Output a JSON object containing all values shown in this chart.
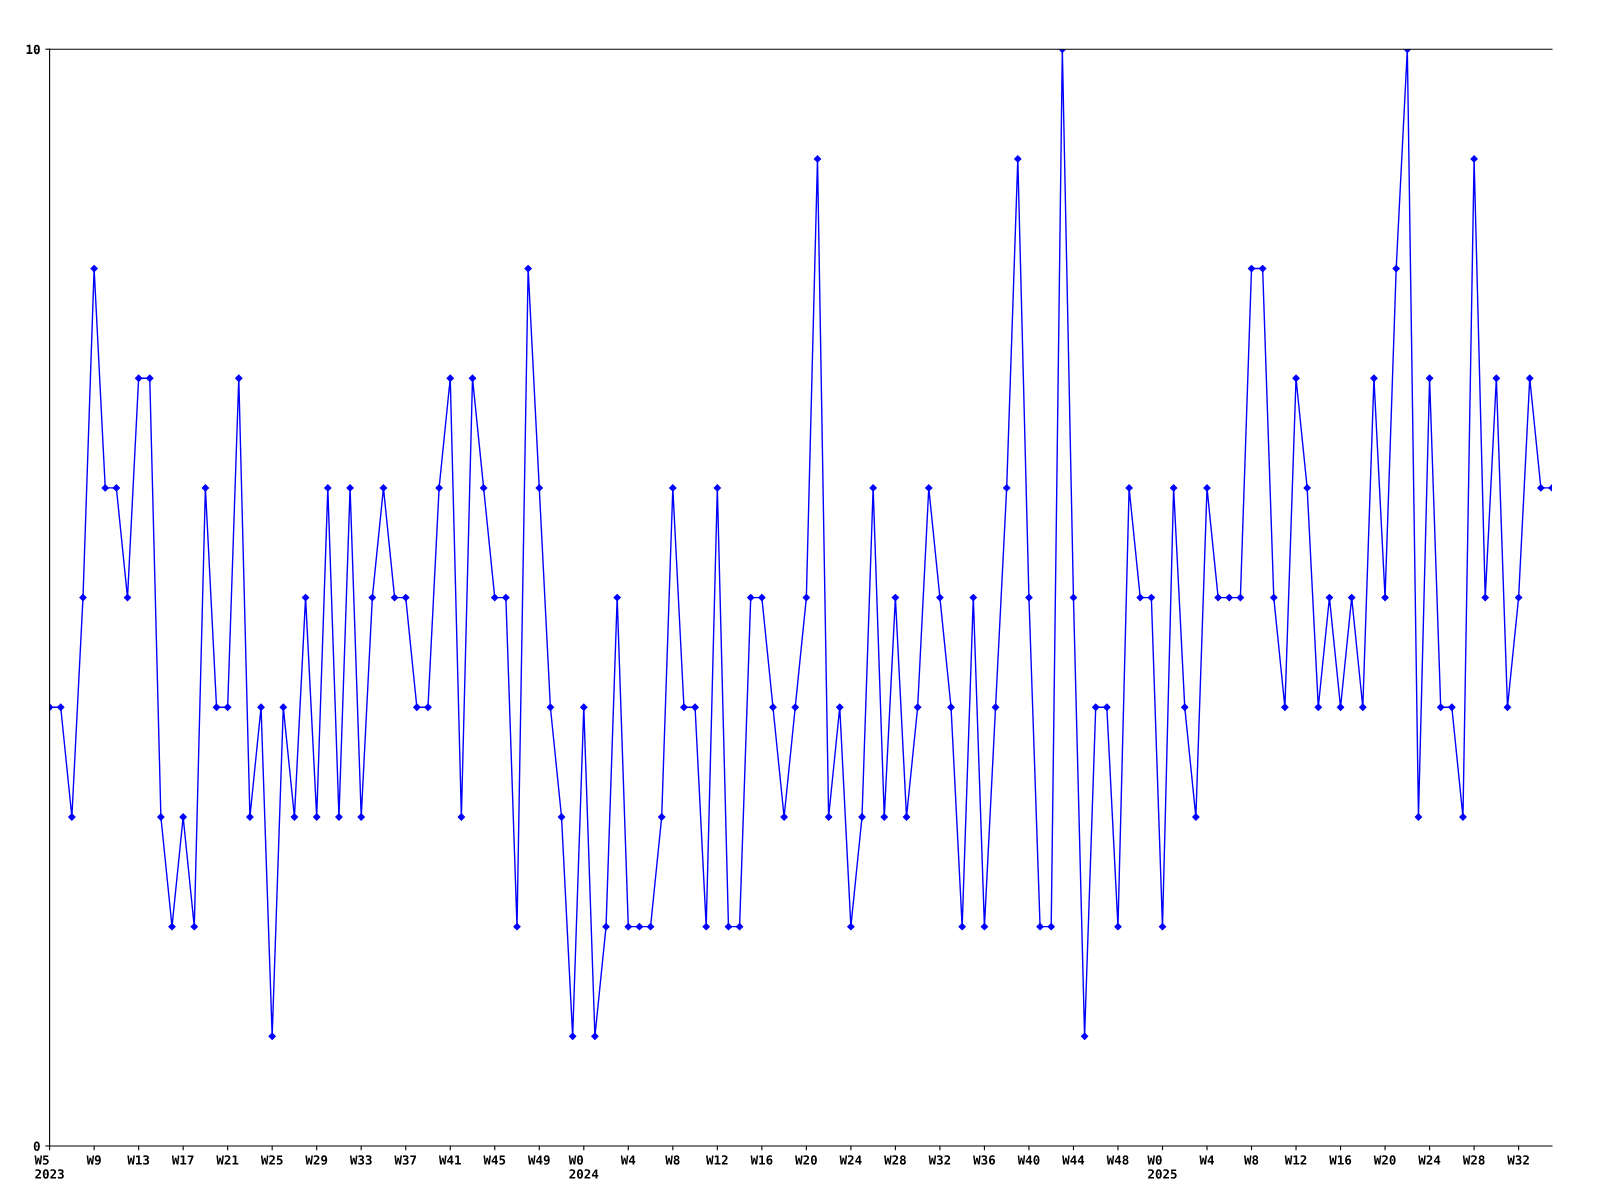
{
  "chart_data": {
    "type": "line",
    "categories": [
      "W5\n2023",
      null,
      null,
      null,
      "W9",
      null,
      null,
      null,
      "W13",
      null,
      null,
      null,
      "W17",
      null,
      null,
      null,
      "W21",
      null,
      null,
      null,
      "W25",
      null,
      null,
      null,
      "W29",
      null,
      null,
      null,
      "W33",
      null,
      null,
      null,
      "W37",
      null,
      null,
      null,
      "W41",
      null,
      null,
      null,
      "W45",
      null,
      null,
      null,
      "W49",
      null,
      null,
      null,
      "W0\n2024",
      null,
      null,
      null,
      "W4",
      null,
      null,
      null,
      "W8",
      null,
      null,
      null,
      "W12",
      null,
      null,
      null,
      "W16",
      null,
      null,
      null,
      "W20",
      null,
      null,
      null,
      "W24",
      null,
      null,
      null,
      "W28",
      null,
      null,
      null,
      "W32",
      null,
      null,
      null,
      "W36",
      null,
      null,
      null,
      "W40",
      null,
      null,
      null,
      "W44",
      null,
      null,
      null,
      "W48",
      null,
      null,
      null,
      "W0\n2025",
      null,
      null,
      null,
      "W4",
      null,
      null,
      null,
      "W8",
      null,
      null,
      null,
      "W12",
      null,
      null,
      null,
      "W16",
      null,
      null,
      null,
      "W20",
      null,
      null,
      null,
      "W24",
      null,
      null,
      null,
      "W28",
      null,
      null,
      null,
      "W32",
      null,
      null,
      null
    ],
    "series": [
      {
        "color": "#0000ff",
        "values": [
          4,
          4,
          3,
          5,
          8,
          6,
          6,
          5,
          7,
          7,
          3,
          2,
          3,
          2,
          6,
          4,
          4,
          7,
          3,
          4,
          1,
          4,
          3,
          5,
          3,
          6,
          3,
          6,
          3,
          5,
          6,
          5,
          5,
          4,
          4,
          6,
          7,
          3,
          7,
          6,
          5,
          5,
          2,
          8,
          6,
          4,
          3,
          1,
          4,
          1,
          2,
          5,
          2,
          2,
          2,
          3,
          6,
          4,
          4,
          2,
          6,
          2,
          2,
          5,
          5,
          4,
          3,
          4,
          5,
          9,
          3,
          4,
          2,
          3,
          6,
          3,
          5,
          3,
          4,
          6,
          5,
          4,
          2,
          5,
          2,
          4,
          6,
          9,
          5,
          2,
          2,
          10,
          5,
          1,
          4,
          4,
          2,
          6,
          5,
          5,
          2,
          6,
          4,
          3,
          6,
          5,
          5,
          5,
          8,
          8,
          5,
          4,
          7,
          6,
          4,
          5,
          4,
          5,
          4,
          7,
          5,
          8,
          10,
          3,
          7,
          4,
          4,
          3,
          9,
          5,
          7,
          4,
          5,
          7,
          6,
          6
        ]
      }
    ],
    "ylim": [
      0,
      10
    ],
    "yticks": [
      0,
      10
    ],
    "grid": false,
    "legend": false,
    "marker": "diamond",
    "line_style": "solid"
  }
}
